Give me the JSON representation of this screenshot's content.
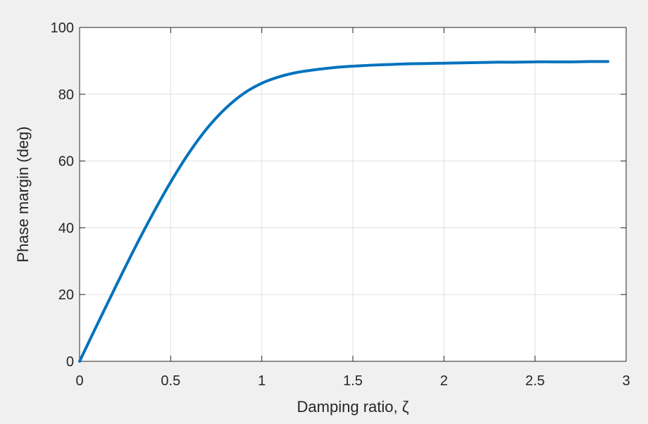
{
  "chart_data": {
    "type": "line",
    "title": "",
    "xlabel": "Damping ratio, ζ",
    "ylabel": "Phase margin (deg)",
    "xlim": [
      0,
      3
    ],
    "ylim": [
      0,
      100
    ],
    "xticks": [
      0,
      0.5,
      1,
      1.5,
      2,
      2.5,
      3
    ],
    "xtick_labels": [
      "0",
      "0.5",
      "1",
      "1.5",
      "2",
      "2.5",
      "3"
    ],
    "yticks": [
      0,
      20,
      40,
      60,
      80,
      100
    ],
    "ytick_labels": [
      "0",
      "20",
      "40",
      "60",
      "80",
      "100"
    ],
    "grid": true,
    "series": [
      {
        "color": "#0072bd",
        "x": [
          0,
          0.1,
          0.2,
          0.3,
          0.4,
          0.5,
          0.6,
          0.7,
          0.8,
          0.9,
          1.0,
          1.1,
          1.2,
          1.3,
          1.4,
          1.5,
          1.6,
          1.7,
          1.8,
          1.9,
          2.0,
          2.1,
          2.2,
          2.3,
          2.4,
          2.5,
          2.6,
          2.7,
          2.8,
          2.9
        ],
        "y": [
          0,
          11.4,
          22.6,
          33.6,
          44.0,
          53.7,
          62.4,
          69.8,
          75.7,
          80.2,
          83.3,
          85.3,
          86.6,
          87.4,
          88.0,
          88.4,
          88.7,
          88.9,
          89.1,
          89.2,
          89.3,
          89.4,
          89.5,
          89.6,
          89.6,
          89.7,
          89.7,
          89.7,
          89.8,
          89.8
        ]
      }
    ]
  }
}
